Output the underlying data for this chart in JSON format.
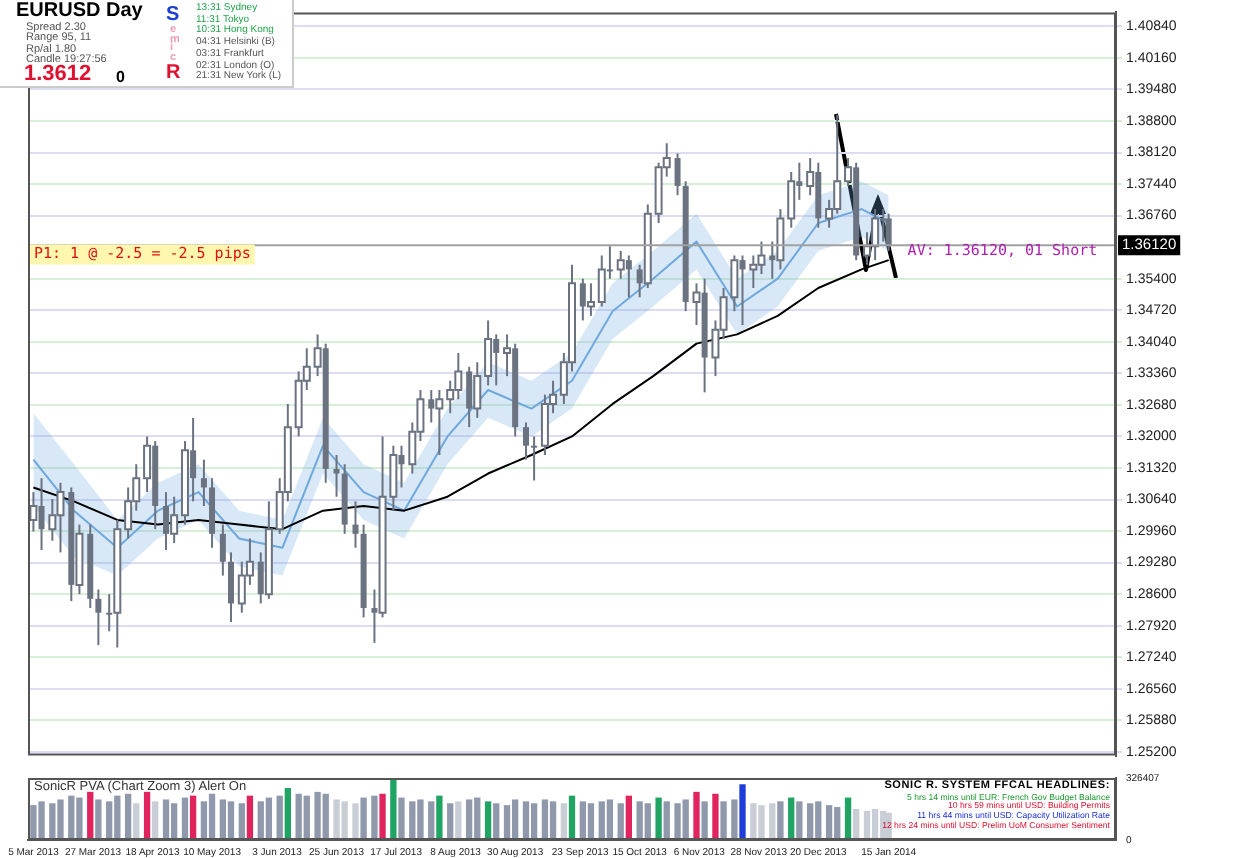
{
  "chart_data": [
    {
      "type": "candlestick",
      "color": "#6b7280",
      "x": [
        "2013-03-05",
        "2013-03-08",
        "2013-03-12",
        "2013-03-15",
        "2013-03-19",
        "2013-03-22",
        "2013-03-26",
        "2013-03-29",
        "2013-04-02",
        "2013-04-05",
        "2013-04-09",
        "2013-04-12",
        "2013-04-16",
        "2013-04-19",
        "2013-04-23",
        "2013-04-26",
        "2013-04-30",
        "2013-05-03",
        "2013-05-07",
        "2013-05-10",
        "2013-05-14",
        "2013-05-17",
        "2013-05-21",
        "2013-05-24",
        "2013-05-28",
        "2013-05-31",
        "2013-06-04",
        "2013-06-07",
        "2013-06-11",
        "2013-06-14",
        "2013-06-18",
        "2013-06-21",
        "2013-06-25",
        "2013-06-28",
        "2013-07-02",
        "2013-07-05",
        "2013-07-09",
        "2013-07-12",
        "2013-07-16",
        "2013-07-19",
        "2013-07-23",
        "2013-07-26",
        "2013-07-30",
        "2013-08-02",
        "2013-08-06",
        "2013-08-09",
        "2013-08-13",
        "2013-08-16",
        "2013-08-20",
        "2013-08-23",
        "2013-08-27",
        "2013-08-30",
        "2013-09-03",
        "2013-09-06",
        "2013-09-10",
        "2013-09-13",
        "2013-09-17",
        "2013-09-20",
        "2013-09-24",
        "2013-09-27",
        "2013-10-01",
        "2013-10-04",
        "2013-10-08",
        "2013-10-11",
        "2013-10-15",
        "2013-10-18",
        "2013-10-22",
        "2013-10-25",
        "2013-10-29",
        "2013-11-01",
        "2013-11-05",
        "2013-11-08",
        "2013-11-12",
        "2013-11-15",
        "2013-11-19",
        "2013-11-22",
        "2013-11-26",
        "2013-11-29",
        "2013-12-03",
        "2013-12-06",
        "2013-12-10",
        "2013-12-13",
        "2013-12-17",
        "2013-12-20",
        "2013-12-24",
        "2013-12-27",
        "2013-12-31",
        "2014-01-03",
        "2014-01-07",
        "2014-01-10",
        "2014-01-13",
        "2014-01-15"
      ],
      "ohlc": [
        [
          1.302,
          1.308,
          1.2995,
          1.305
        ],
        [
          1.305,
          1.311,
          1.2955,
          1.3
        ],
        [
          1.3,
          1.3065,
          1.2975,
          1.303
        ],
        [
          1.303,
          1.31,
          1.295,
          1.308
        ],
        [
          1.308,
          1.309,
          1.2845,
          1.288
        ],
        [
          1.288,
          1.301,
          1.286,
          1.299
        ],
        [
          1.299,
          1.301,
          1.283,
          1.285
        ],
        [
          1.285,
          1.287,
          1.275,
          1.282
        ],
        [
          1.282,
          1.286,
          1.278,
          1.282
        ],
        [
          1.282,
          1.302,
          1.2745,
          1.3
        ],
        [
          1.3,
          1.309,
          1.298,
          1.306
        ],
        [
          1.306,
          1.314,
          1.304,
          1.311
        ],
        [
          1.311,
          1.32,
          1.308,
          1.318
        ],
        [
          1.318,
          1.319,
          1.3,
          1.305
        ],
        [
          1.305,
          1.308,
          1.2955,
          1.299
        ],
        [
          1.299,
          1.307,
          1.297,
          1.303
        ],
        [
          1.303,
          1.319,
          1.301,
          1.317
        ],
        [
          1.317,
          1.324,
          1.306,
          1.311
        ],
        [
          1.311,
          1.315,
          1.305,
          1.309
        ],
        [
          1.309,
          1.311,
          1.296,
          1.299
        ],
        [
          1.299,
          1.301,
          1.29,
          1.293
        ],
        [
          1.293,
          1.295,
          1.28,
          1.284
        ],
        [
          1.284,
          1.293,
          1.282,
          1.29
        ],
        [
          1.29,
          1.298,
          1.288,
          1.293
        ],
        [
          1.293,
          1.295,
          1.284,
          1.286
        ],
        [
          1.286,
          1.306,
          1.285,
          1.3
        ],
        [
          1.3,
          1.311,
          1.299,
          1.308
        ],
        [
          1.308,
          1.327,
          1.306,
          1.322
        ],
        [
          1.322,
          1.334,
          1.32,
          1.332
        ],
        [
          1.332,
          1.339,
          1.33,
          1.335
        ],
        [
          1.335,
          1.342,
          1.333,
          1.339
        ],
        [
          1.339,
          1.34,
          1.31,
          1.313
        ],
        [
          1.313,
          1.316,
          1.307,
          1.312
        ],
        [
          1.312,
          1.314,
          1.299,
          1.301
        ],
        [
          1.301,
          1.306,
          1.296,
          1.299
        ],
        [
          1.299,
          1.301,
          1.281,
          1.283
        ],
        [
          1.283,
          1.287,
          1.2755,
          1.282
        ],
        [
          1.282,
          1.32,
          1.281,
          1.307
        ],
        [
          1.307,
          1.318,
          1.304,
          1.316
        ],
        [
          1.316,
          1.318,
          1.309,
          1.314
        ],
        [
          1.314,
          1.323,
          1.312,
          1.321
        ],
        [
          1.321,
          1.33,
          1.319,
          1.328
        ],
        [
          1.328,
          1.33,
          1.323,
          1.326
        ],
        [
          1.326,
          1.33,
          1.316,
          1.328
        ],
        [
          1.328,
          1.332,
          1.325,
          1.33
        ],
        [
          1.33,
          1.338,
          1.328,
          1.334
        ],
        [
          1.334,
          1.335,
          1.322,
          1.326
        ],
        [
          1.326,
          1.336,
          1.324,
          1.333
        ],
        [
          1.333,
          1.345,
          1.331,
          1.341
        ],
        [
          1.341,
          1.342,
          1.331,
          1.338
        ],
        [
          1.338,
          1.342,
          1.333,
          1.339
        ],
        [
          1.339,
          1.34,
          1.32,
          1.322
        ],
        [
          1.322,
          1.323,
          1.315,
          1.318
        ],
        [
          1.318,
          1.32,
          1.3105,
          1.318
        ],
        [
          1.318,
          1.329,
          1.316,
          1.327
        ],
        [
          1.327,
          1.332,
          1.325,
          1.329
        ],
        [
          1.329,
          1.338,
          1.327,
          1.336
        ],
        [
          1.336,
          1.357,
          1.334,
          1.353
        ],
        [
          1.353,
          1.354,
          1.345,
          1.348
        ],
        [
          1.348,
          1.353,
          1.346,
          1.349
        ],
        [
          1.349,
          1.359,
          1.348,
          1.356
        ],
        [
          1.356,
          1.361,
          1.354,
          1.356
        ],
        [
          1.356,
          1.36,
          1.354,
          1.358
        ],
        [
          1.358,
          1.359,
          1.35,
          1.356
        ],
        [
          1.356,
          1.357,
          1.35,
          1.353
        ],
        [
          1.353,
          1.37,
          1.352,
          1.368
        ],
        [
          1.368,
          1.379,
          1.366,
          1.378
        ],
        [
          1.378,
          1.3832,
          1.376,
          1.38
        ],
        [
          1.38,
          1.381,
          1.372,
          1.374
        ],
        [
          1.374,
          1.375,
          1.347,
          1.349
        ],
        [
          1.349,
          1.353,
          1.344,
          1.351
        ],
        [
          1.351,
          1.354,
          1.3295,
          1.337
        ],
        [
          1.337,
          1.345,
          1.333,
          1.343
        ],
        [
          1.343,
          1.352,
          1.341,
          1.35
        ],
        [
          1.35,
          1.359,
          1.347,
          1.358
        ],
        [
          1.358,
          1.359,
          1.344,
          1.356
        ],
        [
          1.356,
          1.359,
          1.352,
          1.357
        ],
        [
          1.357,
          1.362,
          1.355,
          1.359
        ],
        [
          1.359,
          1.362,
          1.354,
          1.358
        ],
        [
          1.358,
          1.369,
          1.356,
          1.367
        ],
        [
          1.367,
          1.377,
          1.365,
          1.375
        ],
        [
          1.375,
          1.379,
          1.371,
          1.374
        ],
        [
          1.374,
          1.38,
          1.372,
          1.377
        ],
        [
          1.377,
          1.379,
          1.365,
          1.367
        ],
        [
          1.367,
          1.371,
          1.365,
          1.369
        ],
        [
          1.369,
          1.3893,
          1.368,
          1.375
        ],
        [
          1.375,
          1.38,
          1.374,
          1.378
        ],
        [
          1.378,
          1.379,
          1.358,
          1.359
        ],
        [
          1.359,
          1.364,
          1.357,
          1.361
        ],
        [
          1.361,
          1.369,
          1.358,
          1.367
        ],
        [
          1.367,
          1.369,
          1.362,
          1.367
        ],
        [
          1.367,
          1.368,
          1.36,
          1.3612
        ]
      ],
      "series": [
        {
          "type": "line",
          "color": "#000000",
          "x": [
            "2013-03-05",
            "2013-03-20",
            "2013-04-05",
            "2013-04-20",
            "2013-05-05",
            "2013-05-20",
            "2013-06-05",
            "2013-06-20",
            "2013-07-05",
            "2013-07-20",
            "2013-08-05",
            "2013-08-20",
            "2013-09-05",
            "2013-09-20",
            "2013-10-05",
            "2013-10-20",
            "2013-11-05",
            "2013-11-20",
            "2013-12-05",
            "2013-12-20",
            "2014-01-05",
            "2014-01-15"
          ],
          "values": [
            1.309,
            1.306,
            1.302,
            1.301,
            1.302,
            1.301,
            1.3,
            1.304,
            1.305,
            1.304,
            1.307,
            1.312,
            1.316,
            1.32,
            1.327,
            1.333,
            1.34,
            1.342,
            1.346,
            1.352,
            1.356,
            1.358
          ]
        },
        {
          "type": "line",
          "color": "#6fa8dc",
          "x": [
            "2013-03-05",
            "2013-03-20",
            "2013-04-05",
            "2013-04-20",
            "2013-05-05",
            "2013-05-20",
            "2013-06-05",
            "2013-06-20",
            "2013-07-05",
            "2013-07-20",
            "2013-08-05",
            "2013-08-20",
            "2013-09-05",
            "2013-09-20",
            "2013-10-05",
            "2013-10-20",
            "2013-11-05",
            "2013-11-20",
            "2013-12-05",
            "2013-12-20",
            "2014-01-05",
            "2014-01-15"
          ],
          "values": [
            1.315,
            1.304,
            1.296,
            1.304,
            1.308,
            1.298,
            1.296,
            1.318,
            1.308,
            1.304,
            1.32,
            1.33,
            1.326,
            1.332,
            1.347,
            1.354,
            1.362,
            1.348,
            1.354,
            1.366,
            1.369,
            1.366
          ],
          "lower": [
            1.305,
            1.294,
            1.29,
            1.298,
            1.302,
            1.292,
            1.29,
            1.312,
            1.302,
            1.298,
            1.314,
            1.324,
            1.32,
            1.326,
            1.341,
            1.348,
            1.356,
            1.342,
            1.348,
            1.36,
            1.363,
            1.36
          ],
          "upper": [
            1.325,
            1.314,
            1.302,
            1.31,
            1.314,
            1.304,
            1.302,
            1.324,
            1.314,
            1.31,
            1.326,
            1.336,
            1.332,
            1.338,
            1.353,
            1.36,
            1.368,
            1.354,
            1.36,
            1.372,
            1.375,
            1.372
          ]
        }
      ],
      "xlim": [
        "2013-03-03",
        "2014-04-09"
      ],
      "ylim": [
        1.2512,
        1.4114
      ],
      "yticks": [
        {
          "value": 1.252,
          "label": "1.25200"
        },
        {
          "value": 1.2588,
          "label": "1.25880"
        },
        {
          "value": 1.2656,
          "label": "1.26560"
        },
        {
          "value": 1.2724,
          "label": "1.27240"
        },
        {
          "value": 1.2792,
          "label": "1.27920"
        },
        {
          "value": 1.286,
          "label": "1.28600"
        },
        {
          "value": 1.2928,
          "label": "1.29280"
        },
        {
          "value": 1.2996,
          "label": "1.29960"
        },
        {
          "value": 1.3064,
          "label": "1.30640"
        },
        {
          "value": 1.3132,
          "label": "1.31320"
        },
        {
          "value": 1.32,
          "label": "1.32000"
        },
        {
          "value": 1.3268,
          "label": "1.32680"
        },
        {
          "value": 1.3336,
          "label": "1.33360"
        },
        {
          "value": 1.3404,
          "label": "1.34040"
        },
        {
          "value": 1.3472,
          "label": "1.34720"
        },
        {
          "value": 1.354,
          "label": "1.35400"
        },
        {
          "value": 1.3676,
          "label": "1.36760"
        },
        {
          "value": 1.3744,
          "label": "1.37440"
        },
        {
          "value": 1.3812,
          "label": "1.38120"
        },
        {
          "value": 1.388,
          "label": "1.38800"
        },
        {
          "value": 1.3948,
          "label": "1.39480"
        },
        {
          "value": 1.4016,
          "label": "1.40160"
        },
        {
          "value": 1.4084,
          "label": "1.40840"
        }
      ],
      "tick_labels": "y",
      "grid": "y",
      "marker": "none",
      "ref_lines": [
        {
          "axis": "y",
          "value": 1.3612,
          "label": "1.36120",
          "color": "#a0a0a0"
        }
      ],
      "annotations": [
        "P1: 1 @ -2.5 = -2.5 pips",
        {
          "text": "AV: 1.36120, 01 Short",
          "x": "2014-01-22",
          "y": 1.3612
        }
      ]
    },
    {
      "type": "bar",
      "title": "SonicR PVA (Chart Zoom 3)",
      "annotations": [
        "Alert On"
      ],
      "x": [
        "2013-03-05",
        "2013-03-08",
        "2013-03-12",
        "2013-03-15",
        "2013-03-19",
        "2013-03-22",
        "2013-03-26",
        "2013-03-29",
        "2013-04-02",
        "2013-04-05",
        "2013-04-09",
        "2013-04-12",
        "2013-04-16",
        "2013-04-19",
        "2013-04-23",
        "2013-04-26",
        "2013-04-30",
        "2013-05-03",
        "2013-05-07",
        "2013-05-10",
        "2013-05-14",
        "2013-05-17",
        "2013-05-21",
        "2013-05-24",
        "2013-05-28",
        "2013-05-31",
        "2013-06-04",
        "2013-06-07",
        "2013-06-11",
        "2013-06-14",
        "2013-06-18",
        "2013-06-21",
        "2013-06-25",
        "2013-06-28",
        "2013-07-02",
        "2013-07-05",
        "2013-07-09",
        "2013-07-12",
        "2013-07-16",
        "2013-07-19",
        "2013-07-23",
        "2013-07-26",
        "2013-07-30",
        "2013-08-02",
        "2013-08-06",
        "2013-08-09",
        "2013-08-13",
        "2013-08-16",
        "2013-08-20",
        "2013-08-23",
        "2013-08-27",
        "2013-08-30",
        "2013-09-03",
        "2013-09-06",
        "2013-09-10",
        "2013-09-13",
        "2013-09-17",
        "2013-09-20",
        "2013-09-24",
        "2013-09-27",
        "2013-10-01",
        "2013-10-04",
        "2013-10-08",
        "2013-10-11",
        "2013-10-15",
        "2013-10-18",
        "2013-10-22",
        "2013-10-25",
        "2013-10-29",
        "2013-11-01",
        "2013-11-05",
        "2013-11-08",
        "2013-11-12",
        "2013-11-15",
        "2013-11-19",
        "2013-11-22",
        "2013-11-26",
        "2013-11-29",
        "2013-12-03",
        "2013-12-06",
        "2013-12-10",
        "2013-12-13",
        "2013-12-17",
        "2013-12-20",
        "2013-12-24",
        "2013-12-27",
        "2013-12-31",
        "2014-01-03",
        "2014-01-07",
        "2014-01-10",
        "2014-01-13",
        "2014-01-15"
      ],
      "values": [
        180000,
        200000,
        190000,
        210000,
        230000,
        220000,
        250000,
        210000,
        200000,
        230000,
        240000,
        190000,
        250000,
        200000,
        210000,
        190000,
        220000,
        230000,
        200000,
        240000,
        210000,
        200000,
        190000,
        230000,
        200000,
        220000,
        230000,
        270000,
        240000,
        230000,
        250000,
        240000,
        210000,
        200000,
        190000,
        220000,
        230000,
        240000,
        320000,
        220000,
        200000,
        210000,
        200000,
        230000,
        190000,
        200000,
        210000,
        220000,
        200000,
        190000,
        180000,
        210000,
        200000,
        190000,
        210000,
        200000,
        190000,
        230000,
        200000,
        190000,
        200000,
        210000,
        190000,
        230000,
        200000,
        190000,
        220000,
        200000,
        190000,
        210000,
        250000,
        200000,
        240000,
        200000,
        210000,
        290000,
        190000,
        180000,
        190000,
        200000,
        220000,
        200000,
        190000,
        200000,
        180000,
        170000,
        220000,
        160000,
        150000,
        160000,
        150000,
        140000
      ],
      "colors": [
        "#8f99ab",
        "#8f99ab",
        "#8f99ab",
        "#8f99ab",
        "#8f99ab",
        "#8f99ab",
        "#e0245e",
        "#8f99ab",
        "#8f99ab",
        "#8f99ab",
        "#8f99ab",
        "#c9cdd6",
        "#e0245e",
        "#c9cdd6",
        "#8f99ab",
        "#8f99ab",
        "#8f99ab",
        "#e0245e",
        "#8f99ab",
        "#8f99ab",
        "#8f99ab",
        "#8f99ab",
        "#8f99ab",
        "#e0245e",
        "#8f99ab",
        "#8f99ab",
        "#8f99ab",
        "#1fa463",
        "#8f99ab",
        "#8f99ab",
        "#8f99ab",
        "#8f99ab",
        "#c9cdd6",
        "#c9cdd6",
        "#c9cdd6",
        "#8f99ab",
        "#8f99ab",
        "#e0245e",
        "#1fa463",
        "#8f99ab",
        "#8f99ab",
        "#8f99ab",
        "#8f99ab",
        "#1fa463",
        "#8f99ab",
        "#c9cdd6",
        "#8f99ab",
        "#8f99ab",
        "#1fa463",
        "#8f99ab",
        "#8f99ab",
        "#8f99ab",
        "#8f99ab",
        "#8f99ab",
        "#8f99ab",
        "#8f99ab",
        "#c9cdd6",
        "#1fa463",
        "#8f99ab",
        "#8f99ab",
        "#8f99ab",
        "#8f99ab",
        "#8f99ab",
        "#e0245e",
        "#8f99ab",
        "#8f99ab",
        "#1fa463",
        "#8f99ab",
        "#8f99ab",
        "#8f99ab",
        "#e0245e",
        "#8f99ab",
        "#e0245e",
        "#8f99ab",
        "#8f99ab",
        "#1f3ddb",
        "#c9cdd6",
        "#c9cdd6",
        "#c9cdd6",
        "#8f99ab",
        "#1fa463",
        "#8f99ab",
        "#8f99ab",
        "#8f99ab",
        "#8f99ab",
        "#8f99ab",
        "#1fa463",
        "#c9cdd6",
        "#c9cdd6",
        "#c9cdd6",
        "#c9cdd6",
        "#c9cdd6"
      ],
      "xlim": [
        "2013-03-03",
        "2014-04-09"
      ],
      "xticks": [
        {
          "value": "2013-03-05",
          "label": "5 Mar 2013"
        },
        {
          "value": "2013-03-27",
          "label": "27 Mar 2013"
        },
        {
          "value": "2013-04-18",
          "label": "18 Apr 2013"
        },
        {
          "value": "2013-05-10",
          "label": "10 May 2013"
        },
        {
          "value": "2013-06-03",
          "label": "3 Jun 2013"
        },
        {
          "value": "2013-06-25",
          "label": "25 Jun 2013"
        },
        {
          "value": "2013-07-17",
          "label": "17 Jul 2013"
        },
        {
          "value": "2013-08-08",
          "label": "8 Aug 2013"
        },
        {
          "value": "2013-08-30",
          "label": "30 Aug 2013"
        },
        {
          "value": "2013-09-23",
          "label": "23 Sep 2013"
        },
        {
          "value": "2013-10-15",
          "label": "15 Oct 2013"
        },
        {
          "value": "2013-11-06",
          "label": "6 Nov 2013"
        },
        {
          "value": "2013-11-28",
          "label": "28 Nov 2013"
        },
        {
          "value": "2013-12-20",
          "label": "20 Dec 2013"
        },
        {
          "value": "2014-01-15",
          "label": "15 Jan 2014"
        }
      ],
      "ylim": [
        0,
        326407
      ],
      "yticks": [
        0,
        326407
      ]
    },
    {
      "type": "other",
      "title": "EURUSD Day",
      "annotations": [
        "Spread 2.30",
        "Range 95, 11",
        "Rp/al 1.80",
        "Candle 19:27:56",
        "1.3612",
        "0",
        "S",
        "e",
        "m",
        "i",
        "c",
        "R",
        "13:31 Sydney",
        "11:31 Tokyo",
        "10:31 Hong Kong",
        "04:31 Helsinki (B)",
        "03:31 Frankfurt",
        "02:31 London (O)",
        "21:31 New York (L)"
      ],
      "colors": [
        "#555555",
        "#555555",
        "#555555",
        "#555555",
        "#e0102f",
        "#000000",
        "#1a3fd6",
        "#e8a0b8",
        "#e8a0b8",
        "#e8a0b8",
        "#e8a0b8",
        "#e0102f",
        "#1fa44a",
        "#1fa44a",
        "#1fa44a",
        "#555555",
        "#555555",
        "#555555",
        "#555555"
      ]
    },
    {
      "type": "other",
      "title": "SONIC R. SYSTEM FFCAL HEADLINES:",
      "annotations": [
        "5 hrs 14 mins until EUR: French Gov Budget Balance",
        "10 hrs 59 mins until USD: Building Permits",
        "11 hrs 44 mins until USD: Capacity Utilization Rate",
        "12 hrs 24 mins until USD: Prelim UoM Consumer Sentiment"
      ],
      "colors": [
        "#1f9a2e",
        "#e0102f",
        "#1a2fd6",
        "#e0102f"
      ]
    }
  ]
}
